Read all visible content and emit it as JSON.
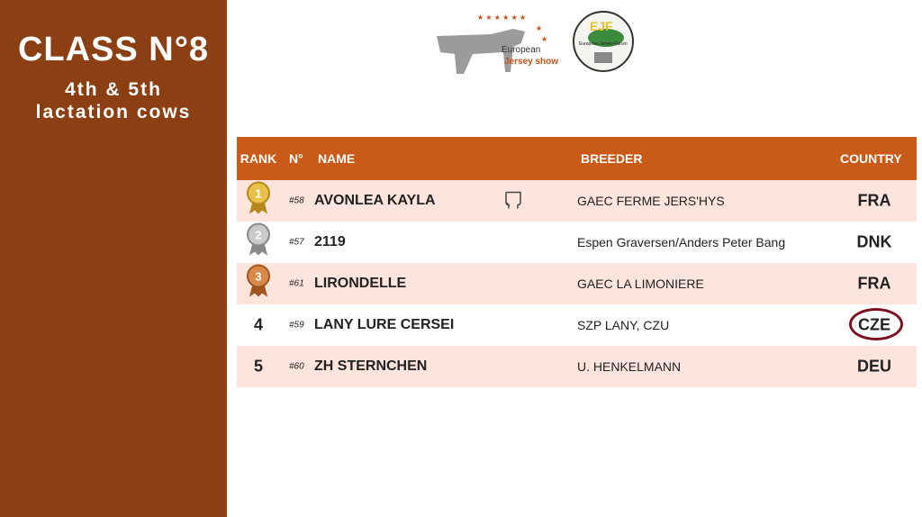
{
  "sidebar": {
    "title": "CLASS N°8",
    "subtitle_line1": "4th & 5th",
    "subtitle_line2": "lactation cows"
  },
  "logos": {
    "show_line1": "European",
    "show_line2": "Jersey show",
    "forum": "EJF",
    "forum_name": "European Jersey Forum"
  },
  "colors": {
    "sidebar": "#8b3f12",
    "header": "#c95a17",
    "row_alt": "#fde4dc",
    "highlight_circle": "#7a1020"
  },
  "table": {
    "headers": {
      "rank": "RANK",
      "num": "N°",
      "name": "NAME",
      "breeder": "BREEDER",
      "country": "COUNTRY"
    },
    "rows": [
      {
        "rank": "1",
        "medal": "gold",
        "num": "#58",
        "name": "AVONLEA KAYLA",
        "udder_icon": true,
        "breeder": "GAEC FERME JERS'HYS",
        "country": "FRA"
      },
      {
        "rank": "2",
        "medal": "silver",
        "num": "#57",
        "name": "2119",
        "breeder": "Espen Graversen/Anders  Peter Bang",
        "country": "DNK"
      },
      {
        "rank": "3",
        "medal": "bronze",
        "num": "#61",
        "name": "LIRONDELLE",
        "breeder": "GAEC LA LIMONIERE",
        "country": "FRA"
      },
      {
        "rank": "4",
        "num": "#59",
        "name": "LANY LURE CERSEI",
        "breeder": "SZP LANY, CZU",
        "country": "CZE",
        "circled": true
      },
      {
        "rank": "5",
        "num": "#60",
        "name": "ZH STERNCHEN",
        "breeder": "U. HENKELMANN",
        "country": "DEU"
      }
    ]
  }
}
